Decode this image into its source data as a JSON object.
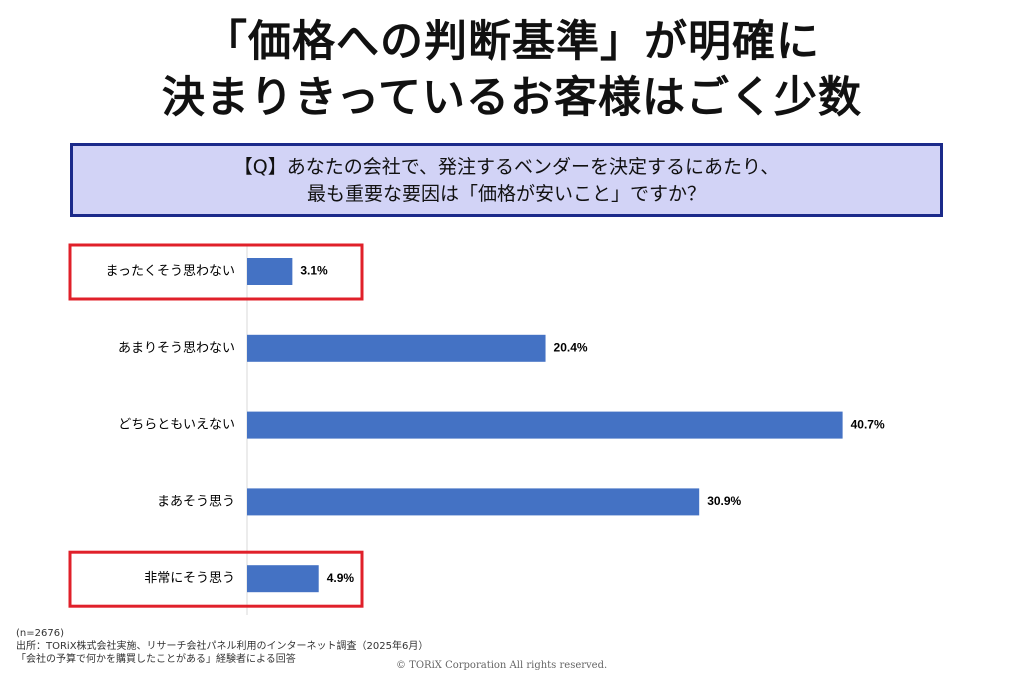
{
  "title": {
    "line1": "「価格への判断基準」が明確に",
    "line2": "決まりきっているお客様はごく少数"
  },
  "question": {
    "line1": "【Q】あなたの会社で、発注するベンダーを決定するにあたり、",
    "line2": "最も重要な要因は「価格が安いこと」ですか？"
  },
  "chart_data": {
    "type": "bar",
    "orientation": "horizontal",
    "categories": [
      "まったくそう思わない",
      "あまりそう思わない",
      "どちらともいえない",
      "まあそう思う",
      "非常にそう思う"
    ],
    "values": [
      3.1,
      20.4,
      40.7,
      30.9,
      4.9
    ],
    "value_labels": [
      "3.1%",
      "20.4%",
      "40.7%",
      "30.9%",
      "4.9%"
    ],
    "unit": "%",
    "xlim": [
      0,
      41
    ],
    "bar_color": "#4472c4",
    "highlight_color": "#e0202a",
    "highlighted_categories": [
      "まったくそう思わない",
      "非常にそう思う"
    ],
    "grid": false,
    "legend": "none"
  },
  "notes": {
    "sample": "(n=2676)",
    "source": "出所：TORiX株式会社実施、リサーチ会社パネル利用のインターネット調査（2025年6月）",
    "respondents": "「会社の予算で何かを購買したことがある」経験者による回答"
  },
  "copyright": "© TORiX Corporation All rights reserved."
}
